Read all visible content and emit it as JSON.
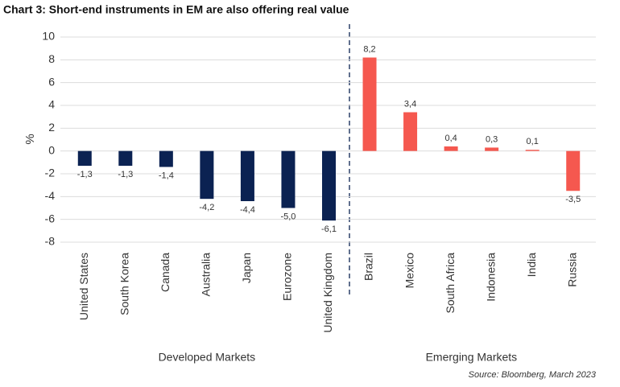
{
  "chart_data": {
    "type": "bar",
    "title": "Chart 3: Short-end instruments in EM are also offering real value",
    "y_label": "%",
    "source": "Source: Bloomberg, March 2023",
    "categories": [
      "United States",
      "South Korea",
      "Canada",
      "Australia",
      "Japan",
      "Eurozone",
      "United Kingdom",
      "Brazil",
      "Mexico",
      "South Africa",
      "Indonesia",
      "India",
      "Russia"
    ],
    "series": [
      {
        "name": "Developed Markets",
        "color": "#0b2252",
        "values": [
          -1.3,
          -1.3,
          -1.4,
          -4.2,
          -4.4,
          -5.0,
          -6.1,
          null,
          null,
          null,
          null,
          null,
          null
        ],
        "value_labels": [
          "-1,3",
          "-1,3",
          "-1,4",
          "-4,2",
          "-4,4",
          "-5,0",
          "-6,1",
          null,
          null,
          null,
          null,
          null,
          null
        ]
      },
      {
        "name": "Emerging Markets",
        "color": "#f5584f",
        "values": [
          null,
          null,
          null,
          null,
          null,
          null,
          null,
          8.2,
          3.4,
          0.4,
          0.3,
          0.1,
          -3.5
        ],
        "value_labels": [
          null,
          null,
          null,
          null,
          null,
          null,
          null,
          "8,2",
          "3,4",
          "0,4",
          "0,3",
          "0,1",
          "-3,5"
        ]
      }
    ],
    "ylim": [
      -8,
      10
    ],
    "yticks": [
      -8,
      -6,
      -4,
      -2,
      0,
      2,
      4,
      6,
      8,
      10
    ],
    "grid": true
  }
}
